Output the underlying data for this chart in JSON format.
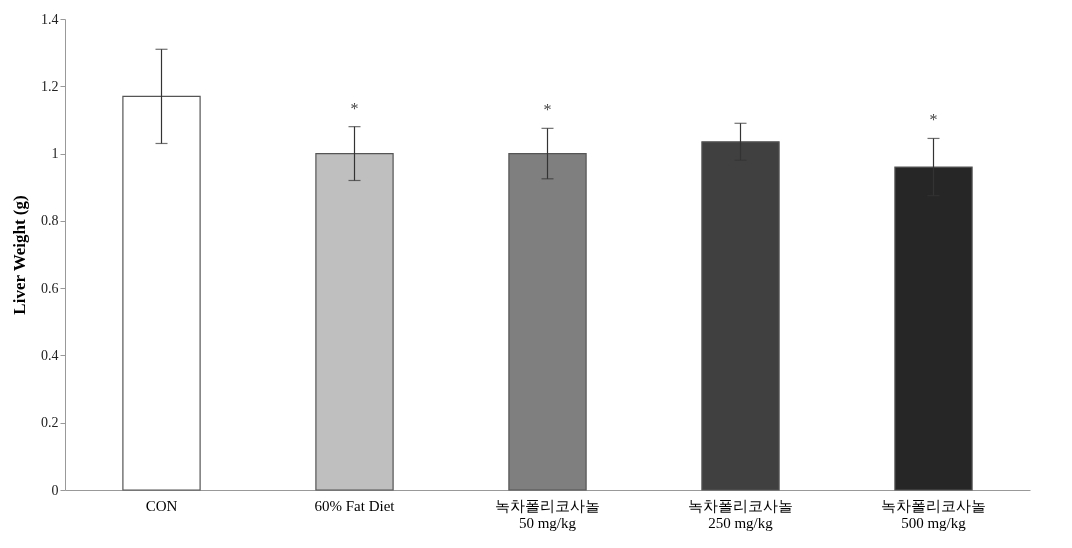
{
  "chart_data": {
    "type": "bar",
    "ylabel": "Liver Weight (g)",
    "categories": [
      "CON",
      "60% Fat Diet",
      "녹차폴리코사놀\n50 mg/kg",
      "녹차폴리코사놀\n250 mg/kg",
      "녹차폴리코사놀\n500 mg/kg"
    ],
    "values": [
      1.17,
      1.0,
      1.0,
      1.035,
      0.96
    ],
    "errors": [
      0.14,
      0.08,
      0.075,
      0.055,
      0.085
    ],
    "colors": [
      "#ffffff",
      "#bfbfbf",
      "#7f7f7f",
      "#404040",
      "#262626"
    ],
    "ylim": [
      0,
      1.4
    ],
    "yticks": [
      0,
      0.2,
      0.4,
      0.6,
      0.8,
      1,
      1.2,
      1.4
    ],
    "grid": false,
    "annotations": [
      {
        "text": "*",
        "x": "60% Fat Diet",
        "y": 1.0
      },
      {
        "text": "*",
        "x": "녹차폴리코사놀\n50 mg/kg",
        "y": 1.0
      },
      {
        "text": "*",
        "x": "녹차폴리코사놀\n500 mg/kg",
        "y": 0.96
      }
    ]
  }
}
